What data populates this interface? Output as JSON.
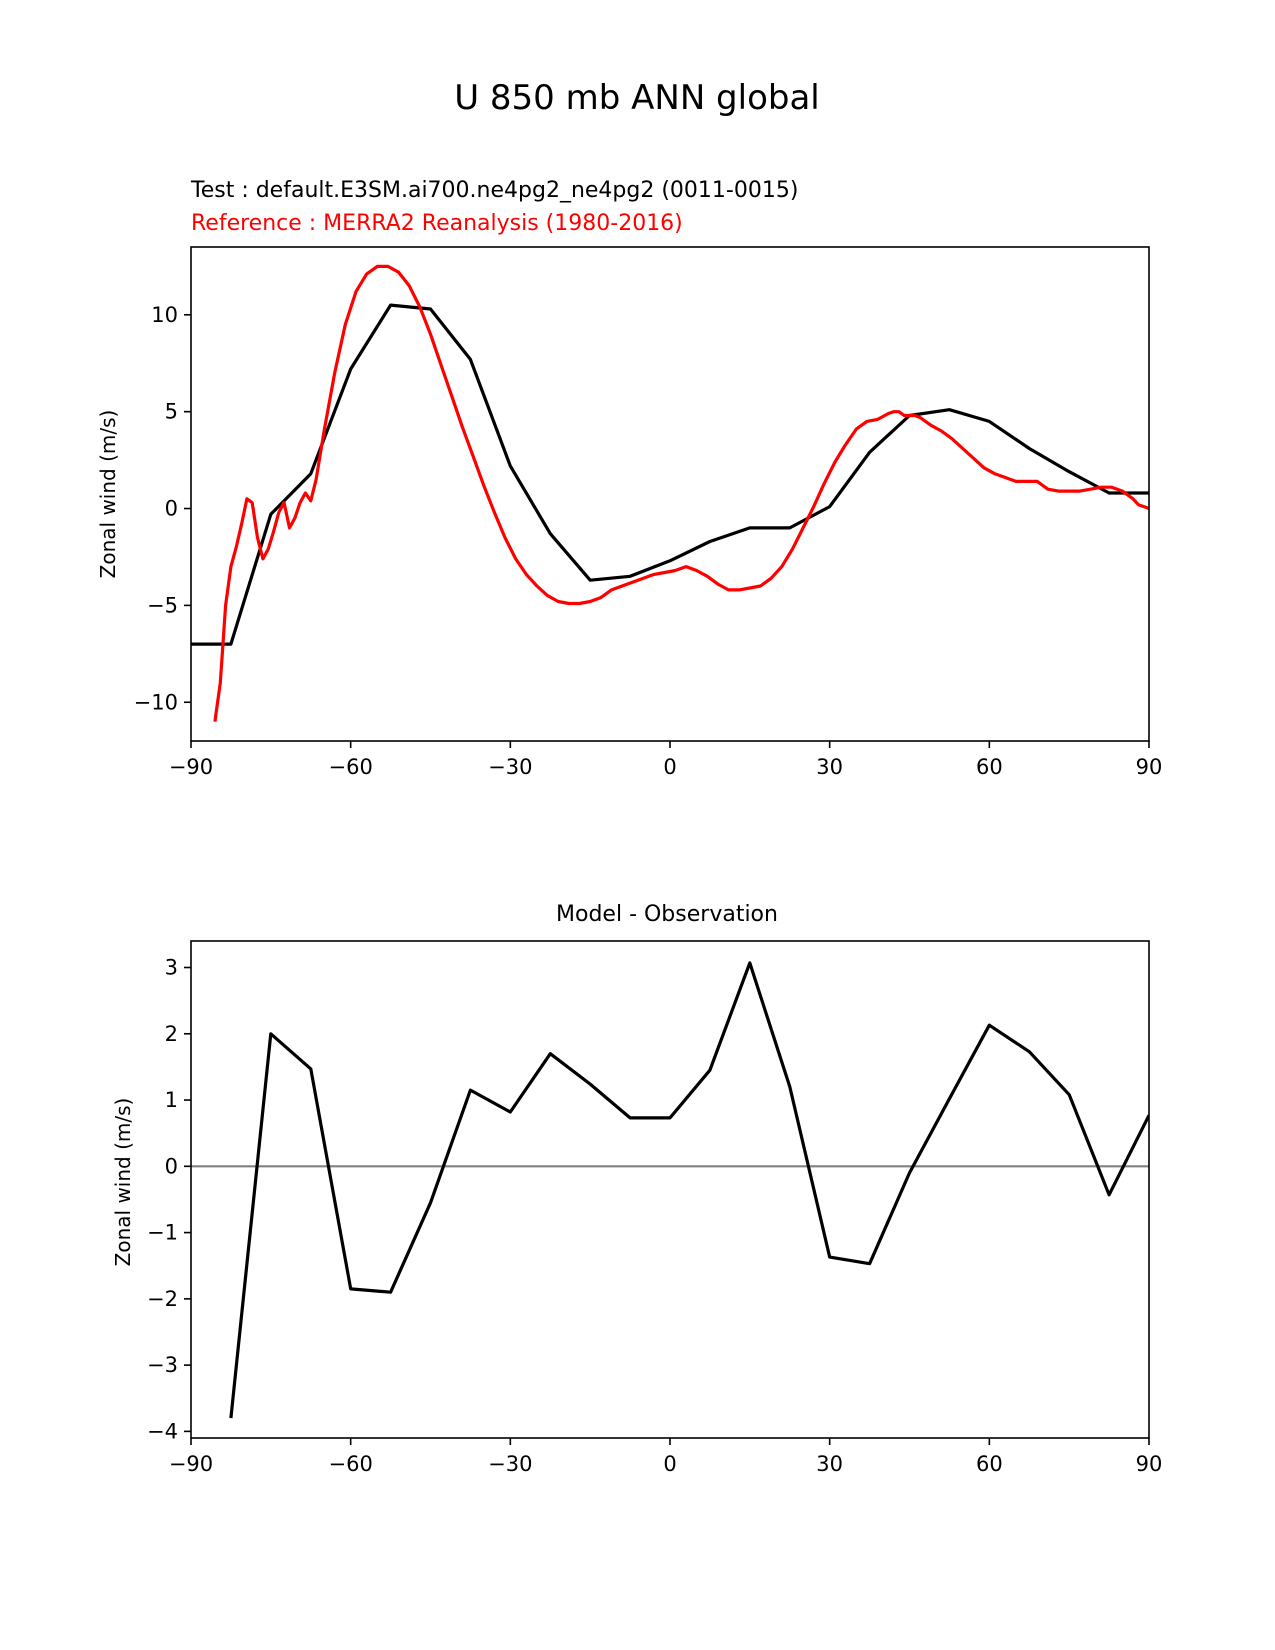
{
  "figure_title": "U 850 mb ANN global",
  "chart_data": [
    {
      "type": "line",
      "test_label": "Test : default.E3SM.ai700.ne4pg2_ne4pg2 (0011-0015)",
      "reference_label": "Reference : MERRA2 Reanalysis (1980-2016)",
      "title": "",
      "xlabel": "",
      "ylabel": "Zonal wind (m/s)",
      "xlim": [
        -90,
        90
      ],
      "ylim": [
        -12.0,
        13.5
      ],
      "xticks": [
        -90,
        -60,
        -30,
        0,
        30,
        60,
        90
      ],
      "xtick_labels": [
        "−90",
        "−60",
        "−30",
        "0",
        "30",
        "60",
        "90"
      ],
      "yticks": [
        -10,
        -5,
        0,
        5,
        10
      ],
      "ytick_labels": [
        "−10",
        "−5",
        "0",
        "5",
        "10"
      ],
      "series": [
        {
          "name": "Test",
          "color": "#000000",
          "x": [
            -90,
            -82.5,
            -75,
            -67.5,
            -60,
            -52.5,
            -45,
            -37.5,
            -30,
            -22.5,
            -15,
            -7.5,
            0,
            7.5,
            15,
            22.5,
            30,
            37.5,
            45,
            52.5,
            60,
            67.5,
            75,
            82.5,
            90
          ],
          "y": [
            -7.0,
            -7.0,
            -0.3,
            1.8,
            7.2,
            10.5,
            10.3,
            7.7,
            2.2,
            -1.3,
            -3.7,
            -3.5,
            -2.7,
            -1.7,
            -1.0,
            -1.0,
            0.1,
            2.9,
            4.8,
            5.1,
            4.5,
            3.1,
            1.9,
            0.8,
            0.8
          ]
        },
        {
          "name": "Reference",
          "color": "#ff0000",
          "x": [
            -85.5,
            -84.5,
            -83.5,
            -82.5,
            -81.5,
            -80.5,
            -79.5,
            -78.5,
            -77.5,
            -76.5,
            -75.5,
            -74.5,
            -73.5,
            -72.5,
            -71.5,
            -70.5,
            -69.5,
            -68.5,
            -67.5,
            -66.5,
            -65,
            -63,
            -61,
            -59,
            -57,
            -55,
            -53,
            -51,
            -49,
            -47,
            -45,
            -43,
            -41,
            -39,
            -37,
            -35,
            -33,
            -31,
            -29,
            -27,
            -25,
            -23,
            -21,
            -19,
            -17,
            -15,
            -13,
            -11,
            -9,
            -7,
            -5,
            -3,
            -1,
            1,
            3,
            5,
            7,
            9,
            11,
            13,
            15,
            17,
            19,
            21,
            23,
            25,
            27,
            29,
            31,
            33,
            35,
            37,
            39,
            41,
            42,
            43,
            44,
            45,
            46,
            47,
            49,
            51,
            53,
            55,
            57,
            59,
            61,
            63,
            65,
            67,
            69,
            71,
            73,
            75,
            77,
            79,
            81,
            83,
            85,
            87,
            88,
            90
          ],
          "y": [
            -11.0,
            -9.0,
            -5.0,
            -3.0,
            -2.0,
            -0.8,
            0.5,
            0.3,
            -1.5,
            -2.6,
            -2.1,
            -1.2,
            -0.2,
            0.3,
            -1.0,
            -0.5,
            0.3,
            0.8,
            0.4,
            1.5,
            4.0,
            7.0,
            9.5,
            11.2,
            12.1,
            12.5,
            12.5,
            12.2,
            11.5,
            10.4,
            9.0,
            7.4,
            5.8,
            4.2,
            2.7,
            1.2,
            -0.2,
            -1.5,
            -2.6,
            -3.4,
            -4.0,
            -4.5,
            -4.8,
            -4.9,
            -4.9,
            -4.8,
            -4.6,
            -4.2,
            -4.0,
            -3.8,
            -3.6,
            -3.4,
            -3.3,
            -3.2,
            -3.0,
            -3.2,
            -3.5,
            -3.9,
            -4.2,
            -4.2,
            -4.1,
            -4.0,
            -3.6,
            -3.0,
            -2.1,
            -1.0,
            0.1,
            1.3,
            2.4,
            3.3,
            4.1,
            4.5,
            4.6,
            4.9,
            5.0,
            5.0,
            4.8,
            4.8,
            4.8,
            4.7,
            4.3,
            4.0,
            3.6,
            3.1,
            2.6,
            2.1,
            1.8,
            1.6,
            1.4,
            1.4,
            1.4,
            1.0,
            0.9,
            0.9,
            0.9,
            1.0,
            1.1,
            1.1,
            0.9,
            0.5,
            0.2,
            0.0
          ]
        }
      ]
    },
    {
      "type": "line",
      "title": "Model - Observation",
      "xlabel": "",
      "ylabel": "Zonal wind (m/s)",
      "xlim": [
        -90,
        90
      ],
      "ylim": [
        -4.1,
        3.4
      ],
      "xticks": [
        -90,
        -60,
        -30,
        0,
        30,
        60,
        90
      ],
      "xtick_labels": [
        "−90",
        "−60",
        "−30",
        "0",
        "30",
        "60",
        "90"
      ],
      "yticks": [
        -4,
        -3,
        -2,
        -1,
        0,
        1,
        2,
        3
      ],
      "ytick_labels": [
        "−4",
        "−3",
        "−2",
        "−1",
        "0",
        "1",
        "2",
        "3"
      ],
      "zero_line_color": "#808080",
      "series": [
        {
          "name": "Difference",
          "color": "#000000",
          "x": [
            -82.5,
            -75,
            -67.5,
            -60,
            -52.5,
            -45,
            -37.5,
            -30,
            -22.5,
            -15,
            -7.5,
            0,
            7.5,
            15,
            22.5,
            30,
            37.5,
            45,
            52.5,
            60,
            67.5,
            75,
            82.5,
            90
          ],
          "y": [
            -3.8,
            2.0,
            1.47,
            -1.85,
            -1.9,
            -0.55,
            1.15,
            0.82,
            1.7,
            1.24,
            0.73,
            0.73,
            1.45,
            3.07,
            1.2,
            -1.37,
            -1.47,
            -0.1,
            1.02,
            2.13,
            1.73,
            1.08,
            -0.43,
            0.77
          ]
        }
      ]
    }
  ]
}
